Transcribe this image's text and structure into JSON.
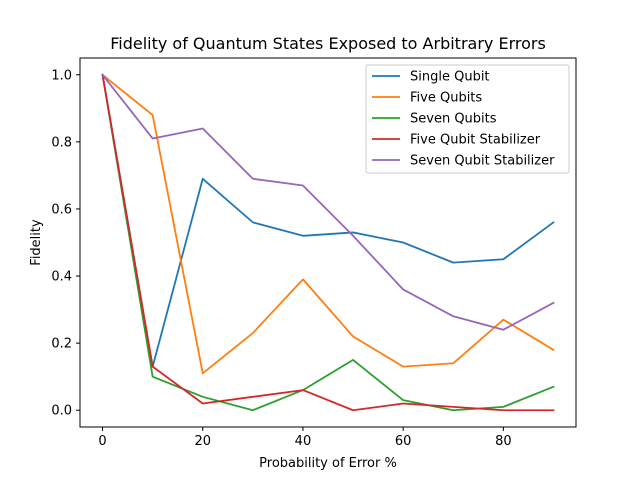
{
  "chart_data": {
    "type": "line",
    "title": "Fidelity of Quantum States Exposed to Arbitrary Errors",
    "xlabel": "Probability of Error %",
    "ylabel": "Fidelity",
    "x": [
      0,
      10,
      20,
      30,
      40,
      50,
      60,
      70,
      80,
      90
    ],
    "xlim": [
      -4.5,
      94.5
    ],
    "ylim": [
      -0.05,
      1.05
    ],
    "xticks": [
      0,
      20,
      40,
      60,
      80
    ],
    "xtick_labels": [
      "0",
      "20",
      "40",
      "60",
      "80"
    ],
    "yticks": [
      0.0,
      0.2,
      0.4,
      0.6,
      0.8,
      1.0
    ],
    "ytick_labels": [
      "0.0",
      "0.2",
      "0.4",
      "0.6",
      "0.8",
      "1.0"
    ],
    "grid": false,
    "legend_position": "top-right",
    "series": [
      {
        "name": "Single Qubit",
        "color": "#1f77b4",
        "values": [
          1.0,
          0.13,
          0.69,
          0.56,
          0.52,
          0.53,
          0.5,
          0.44,
          0.45,
          0.56
        ]
      },
      {
        "name": "Five Qubits",
        "color": "#ff7f0e",
        "values": [
          1.0,
          0.88,
          0.11,
          0.23,
          0.39,
          0.22,
          0.13,
          0.14,
          0.27,
          0.18
        ]
      },
      {
        "name": "Seven Qubits",
        "color": "#2ca02c",
        "values": [
          1.0,
          0.1,
          0.04,
          0.0,
          0.06,
          0.15,
          0.03,
          0.0,
          0.01,
          0.07
        ]
      },
      {
        "name": "Five Qubit Stabilizer",
        "color": "#d62728",
        "values": [
          1.0,
          0.13,
          0.02,
          0.04,
          0.06,
          0.0,
          0.02,
          0.01,
          0.0,
          0.0
        ]
      },
      {
        "name": "Seven Qubit Stabilizer",
        "color": "#9467bd",
        "values": [
          1.0,
          0.81,
          0.84,
          0.69,
          0.67,
          0.52,
          0.36,
          0.28,
          0.24,
          0.32
        ]
      }
    ]
  }
}
